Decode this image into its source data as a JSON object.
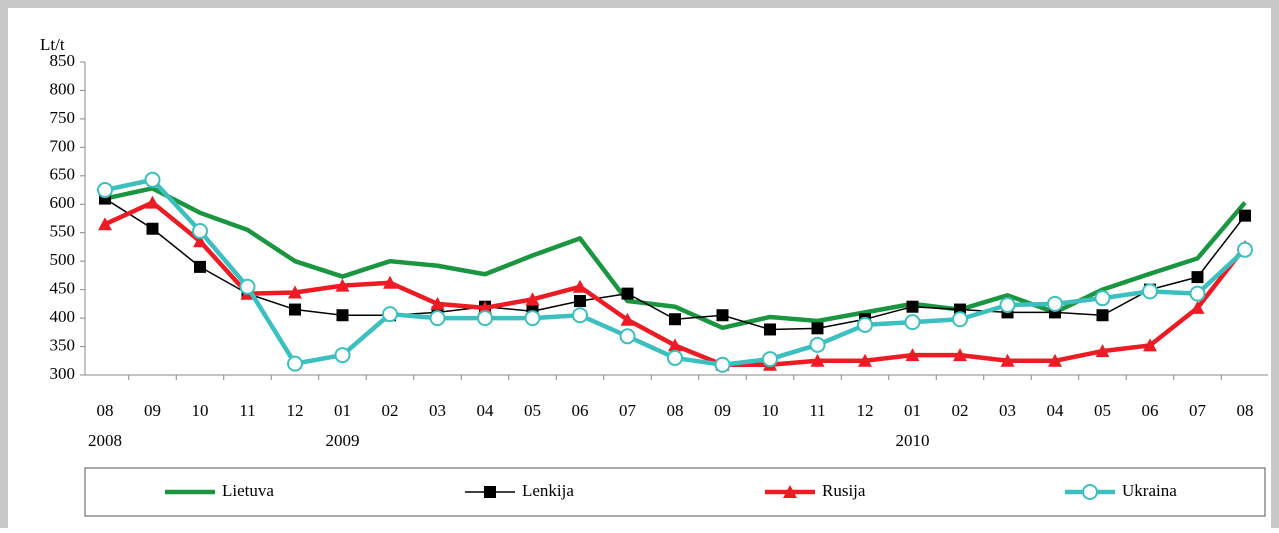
{
  "chart_data": {
    "type": "line",
    "ylabel": "Lt/t",
    "categories": [
      "08",
      "09",
      "10",
      "11",
      "12",
      "01",
      "02",
      "03",
      "04",
      "05",
      "06",
      "07",
      "08",
      "09",
      "10",
      "11",
      "12",
      "01",
      "02",
      "03",
      "04",
      "05",
      "06",
      "07",
      "08"
    ],
    "year_labels": [
      "2008",
      null,
      null,
      null,
      null,
      "2009",
      null,
      null,
      null,
      null,
      null,
      null,
      null,
      null,
      null,
      null,
      null,
      "2010",
      null,
      null,
      null,
      null,
      null,
      null,
      null
    ],
    "ylim": [
      300,
      850
    ],
    "yticks": [
      300,
      350,
      400,
      450,
      500,
      550,
      600,
      650,
      700,
      750,
      800,
      850
    ],
    "grid": false,
    "legend": "bottom",
    "series": [
      {
        "name": "Lietuva",
        "color": "#1a9641",
        "marker": "none",
        "values": [
          610,
          628,
          585,
          555,
          500,
          473,
          500,
          492,
          477,
          510,
          540,
          430,
          420,
          383,
          402,
          395,
          410,
          425,
          415,
          440,
          410,
          450,
          478,
          505,
          603
        ]
      },
      {
        "name": "Lenkija",
        "color": "#000000",
        "marker": "square",
        "values": [
          610,
          557,
          490,
          443,
          415,
          405,
          405,
          410,
          420,
          412,
          430,
          443,
          398,
          405,
          380,
          382,
          398,
          420,
          415,
          410,
          410,
          405,
          450,
          472,
          580
        ]
      },
      {
        "name": "Rusija",
        "color": "#ed1c24",
        "marker": "triangle",
        "values": [
          565,
          603,
          535,
          443,
          445,
          457,
          462,
          425,
          418,
          433,
          455,
          397,
          352,
          318,
          318,
          325,
          325,
          335,
          335,
          325,
          325,
          342,
          352,
          418,
          525
        ]
      },
      {
        "name": "Ukraina",
        "color": "#3cbfbf",
        "marker": "circle",
        "values": [
          625,
          643,
          553,
          455,
          320,
          335,
          407,
          400,
          400,
          400,
          405,
          368,
          330,
          318,
          328,
          353,
          388,
          393,
          398,
          423,
          425,
          435,
          447,
          443,
          520
        ]
      }
    ]
  }
}
